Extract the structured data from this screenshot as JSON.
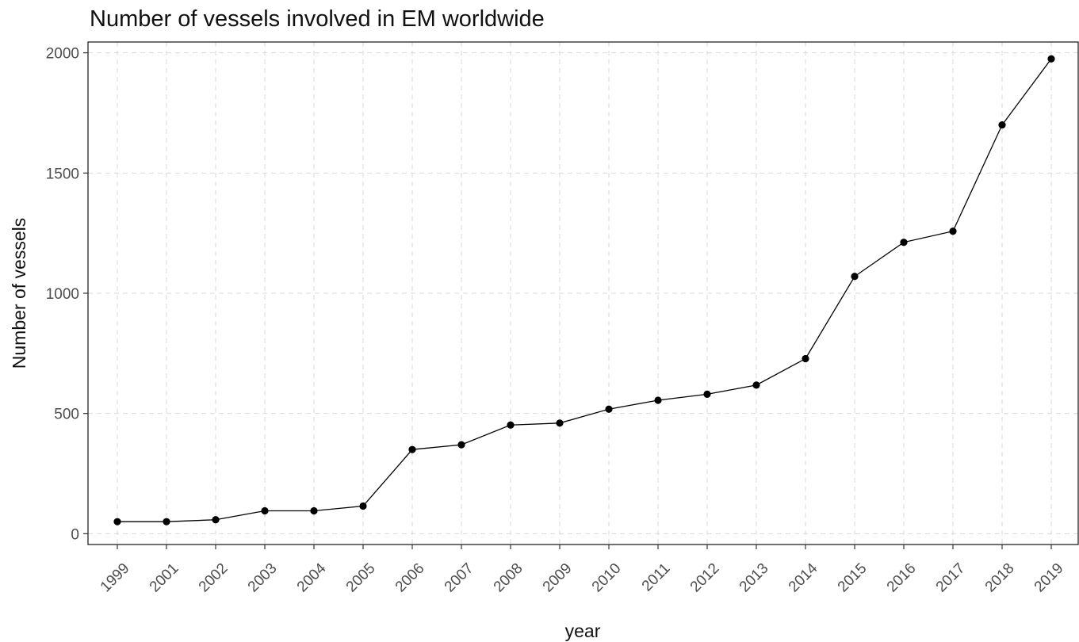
{
  "chart_data": {
    "type": "line",
    "title": "Number of vessels involved in EM worldwide",
    "xlabel": "year",
    "ylabel": "Number of vessels",
    "ylim": [
      -45,
      2045
    ],
    "yticks": [
      0,
      500,
      1000,
      1500,
      2000
    ],
    "grid": true,
    "categories": [
      "1999",
      "2001",
      "2002",
      "2003",
      "2004",
      "2005",
      "2006",
      "2007",
      "2008",
      "2009",
      "2010",
      "2011",
      "2012",
      "2013",
      "2014",
      "2015",
      "2016",
      "2017",
      "2018",
      "2019"
    ],
    "series": [
      {
        "values": [
          50,
          50,
          58,
          95,
          95,
          115,
          350,
          370,
          452,
          460,
          518,
          555,
          580,
          618,
          728,
          1070,
          1212,
          1258,
          1700,
          1975
        ]
      }
    ],
    "colors": {
      "line": "#000000",
      "point": "#000000",
      "grid": "#d9d9d9",
      "panel_border": "#222222"
    }
  }
}
